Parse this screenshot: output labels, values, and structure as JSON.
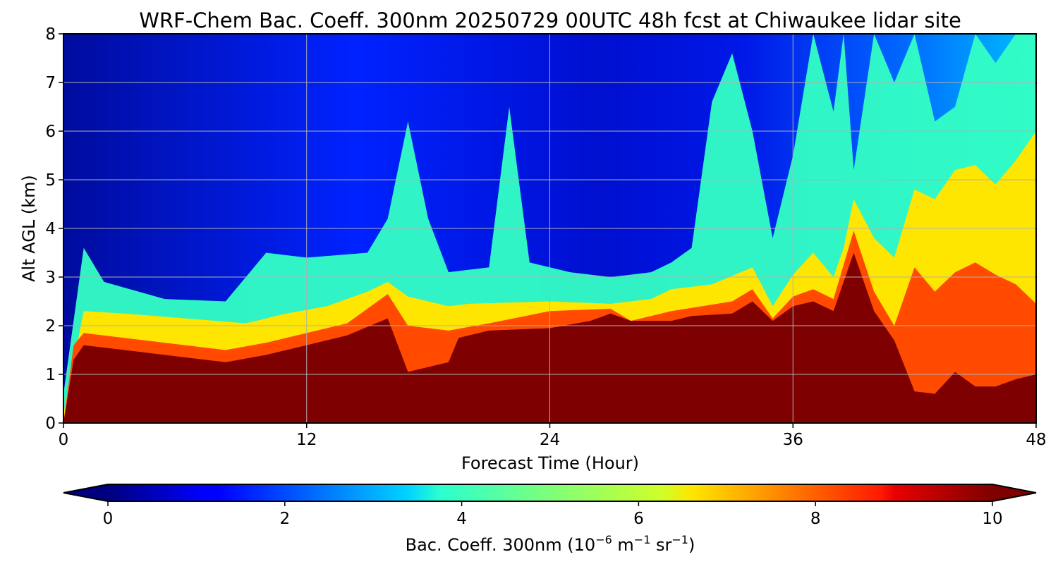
{
  "chart_data": {
    "type": "heatmap",
    "title": "WRF-Chem Bac. Coeff. 300nm  20250729 00UTC 48h fcst at Chiwaukee lidar site",
    "xlabel": "Forecast Time (Hour)",
    "ylabel": "Alt AGL (km)",
    "xlim": [
      0,
      48
    ],
    "ylim": [
      0,
      8
    ],
    "x_ticks": [
      0,
      12,
      24,
      36,
      48
    ],
    "y_ticks": [
      0,
      1,
      2,
      3,
      4,
      5,
      6,
      7,
      8
    ],
    "grid": true,
    "colormap": "jet",
    "colorbar": {
      "orientation": "horizontal",
      "placement": "bottom",
      "extend": "both",
      "range": [
        0,
        10
      ],
      "ticks": [
        0,
        2,
        4,
        6,
        8,
        10
      ],
      "label_main": "Bac. Coeff. 300nm  (10",
      "label_exp1": "−6",
      "label_unit1": " m",
      "label_exp2": "−1",
      "label_unit2": " sr",
      "label_exp3": "−1",
      "label_close": ")",
      "under_color": "#00007f",
      "over_color": "#7f0000"
    },
    "layers": [
      {
        "name": "saturated-boundary-layer",
        "value_range": "≥10",
        "color": "#7f0000",
        "top_km": [
          [
            0,
            0
          ],
          [
            0.5,
            1.3
          ],
          [
            1,
            1.6
          ],
          [
            4,
            1.45
          ],
          [
            8,
            1.25
          ],
          [
            10,
            1.4
          ],
          [
            12,
            1.6
          ],
          [
            14,
            1.8
          ],
          [
            16,
            2.15
          ],
          [
            17,
            1.05
          ],
          [
            19,
            1.25
          ],
          [
            19.5,
            1.75
          ],
          [
            21,
            1.9
          ],
          [
            24,
            1.95
          ],
          [
            26,
            2.1
          ],
          [
            27,
            2.25
          ],
          [
            28,
            2.1
          ],
          [
            30,
            2.1
          ],
          [
            31,
            2.2
          ],
          [
            33,
            2.25
          ],
          [
            34,
            2.5
          ],
          [
            35,
            2.1
          ],
          [
            36,
            2.4
          ],
          [
            37,
            2.5
          ],
          [
            38,
            2.3
          ],
          [
            39,
            3.5
          ],
          [
            40,
            2.3
          ],
          [
            41,
            1.7
          ],
          [
            42,
            0.65
          ],
          [
            43,
            0.6
          ],
          [
            44,
            1.05
          ],
          [
            45,
            0.75
          ],
          [
            46,
            0.75
          ],
          [
            47,
            0.9
          ],
          [
            48,
            1.0
          ]
        ]
      },
      {
        "name": "elevated-aerosol-layer",
        "value_range": "8-10",
        "color": "#ff4a00",
        "top_km": [
          [
            0,
            0
          ],
          [
            0.5,
            1.6
          ],
          [
            1,
            1.85
          ],
          [
            4,
            1.7
          ],
          [
            8,
            1.5
          ],
          [
            10,
            1.65
          ],
          [
            12,
            1.85
          ],
          [
            14,
            2.05
          ],
          [
            16,
            2.65
          ],
          [
            17,
            2.0
          ],
          [
            19,
            1.9
          ],
          [
            21,
            2.05
          ],
          [
            24,
            2.3
          ],
          [
            27,
            2.35
          ],
          [
            28,
            2.1
          ],
          [
            30,
            2.3
          ],
          [
            33,
            2.5
          ],
          [
            34,
            2.75
          ],
          [
            35,
            2.15
          ],
          [
            36,
            2.6
          ],
          [
            37,
            2.75
          ],
          [
            38,
            2.55
          ],
          [
            39,
            3.95
          ],
          [
            40,
            2.7
          ],
          [
            41,
            2.0
          ],
          [
            42,
            3.2
          ],
          [
            43,
            2.7
          ],
          [
            44,
            3.1
          ],
          [
            45,
            3.3
          ],
          [
            46,
            3.05
          ],
          [
            47,
            2.85
          ],
          [
            48,
            2.45
          ]
        ]
      },
      {
        "name": "transition-layer",
        "value_range": "6-8",
        "color": "#ffe600",
        "top_km": [
          [
            0,
            0.2
          ],
          [
            1,
            2.3
          ],
          [
            3,
            2.25
          ],
          [
            6,
            2.15
          ],
          [
            9,
            2.05
          ],
          [
            11,
            2.25
          ],
          [
            13,
            2.4
          ],
          [
            15,
            2.7
          ],
          [
            16,
            2.9
          ],
          [
            17,
            2.6
          ],
          [
            19,
            2.4
          ],
          [
            20,
            2.45
          ],
          [
            24,
            2.5
          ],
          [
            27,
            2.45
          ],
          [
            29,
            2.55
          ],
          [
            30,
            2.75
          ],
          [
            32,
            2.85
          ],
          [
            34,
            3.2
          ],
          [
            35,
            2.4
          ],
          [
            36,
            3.05
          ],
          [
            37,
            3.5
          ],
          [
            38,
            3.0
          ],
          [
            38.5,
            3.6
          ],
          [
            39,
            4.6
          ],
          [
            40,
            3.8
          ],
          [
            41,
            3.4
          ],
          [
            42,
            4.8
          ],
          [
            43,
            4.6
          ],
          [
            44,
            5.2
          ],
          [
            45,
            5.3
          ],
          [
            46,
            4.9
          ],
          [
            47,
            5.4
          ],
          [
            48,
            6.0
          ]
        ]
      },
      {
        "name": "aerosol-plumes",
        "value_range": "3.5-6",
        "color": "#33ffc4",
        "top_km": [
          [
            0,
            0.6
          ],
          [
            1,
            3.6
          ],
          [
            2,
            2.9
          ],
          [
            5,
            2.55
          ],
          [
            8,
            2.5
          ],
          [
            9,
            3.0
          ],
          [
            10,
            3.5
          ],
          [
            12,
            3.4
          ],
          [
            15,
            3.5
          ],
          [
            16,
            4.2
          ],
          [
            17,
            6.2
          ],
          [
            18,
            4.2
          ],
          [
            19,
            3.1
          ],
          [
            21,
            3.2
          ],
          [
            22,
            6.5
          ],
          [
            23,
            3.3
          ],
          [
            25,
            3.1
          ],
          [
            27,
            3.0
          ],
          [
            29,
            3.1
          ],
          [
            30,
            3.3
          ],
          [
            31,
            3.6
          ],
          [
            32,
            6.6
          ],
          [
            33,
            7.6
          ],
          [
            34,
            6.0
          ],
          [
            35,
            3.8
          ],
          [
            36,
            5.5
          ],
          [
            37,
            8
          ],
          [
            38,
            6.4
          ],
          [
            38.5,
            8
          ],
          [
            39,
            5.2
          ],
          [
            40,
            8
          ],
          [
            41,
            7.0
          ],
          [
            42,
            8
          ],
          [
            43,
            6.2
          ],
          [
            44,
            6.5
          ],
          [
            45,
            8
          ],
          [
            46,
            7.4
          ],
          [
            47,
            8
          ],
          [
            48,
            8
          ]
        ]
      }
    ]
  }
}
